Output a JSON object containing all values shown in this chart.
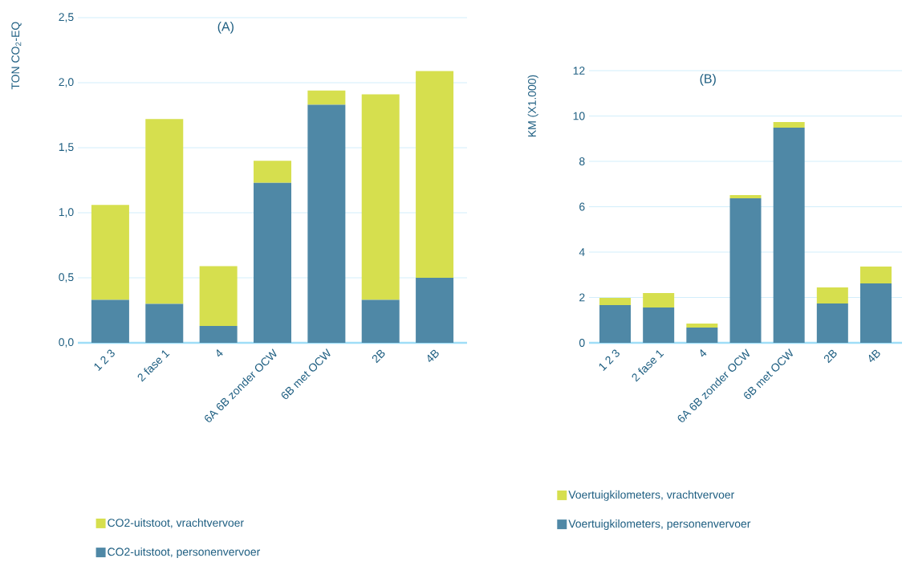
{
  "chart_data": [
    {
      "type": "bar",
      "title": "(A)",
      "ylabel": "TON CO$_{2}$-EQ",
      "stacked": true,
      "grid": "y",
      "legend": "bottom",
      "categories": [
        "1 2 3",
        "2 fase 1",
        "4",
        "6A 6B zonder OCW",
        "6B met OCW",
        "2B",
        "4B"
      ],
      "series": [
        {
          "name": "CO2-uitstoot, personenvervoer",
          "color": "#4f88a6",
          "values": [
            0.33,
            0.3,
            0.13,
            1.23,
            1.83,
            0.33,
            0.5
          ]
        },
        {
          "name": "CO2-uitstoot, vrachtvervoer",
          "color": "#d6df4e",
          "values": [
            0.73,
            1.42,
            0.46,
            0.17,
            0.11,
            1.58,
            1.59
          ]
        }
      ],
      "ylim": [
        0,
        2.5
      ],
      "yticks": [
        {
          "value": 0,
          "label": "0,0"
        },
        {
          "value": 0.5,
          "label": "0,5"
        },
        {
          "value": 1,
          "label": "1,0"
        },
        {
          "value": 1.5,
          "label": "1,5"
        },
        {
          "value": 2,
          "label": "2,0"
        },
        {
          "value": 2.5,
          "label": "2,5"
        }
      ]
    },
    {
      "type": "bar",
      "title": "(B)",
      "ylabel": "KM (X1.000)",
      "stacked": true,
      "grid": "y",
      "legend": "bottom",
      "categories": [
        "1 2 3",
        "2 fase 1",
        "4",
        "6A 6B zonder OCW",
        "6B met OCW",
        "2B",
        "4B"
      ],
      "series": [
        {
          "name": "Voertuigkilometers, personenvervoer",
          "color": "#4f88a6",
          "values": [
            1.66,
            1.56,
            0.67,
            6.37,
            9.49,
            1.73,
            2.62
          ]
        },
        {
          "name": "Voertuigkilometers, vrachtvervoer",
          "color": "#d6df4e",
          "values": [
            0.32,
            0.63,
            0.18,
            0.14,
            0.24,
            0.71,
            0.74
          ]
        }
      ],
      "ylim": [
        0,
        12
      ],
      "yticks": [
        0,
        2,
        4,
        6,
        8,
        10,
        12
      ]
    }
  ]
}
